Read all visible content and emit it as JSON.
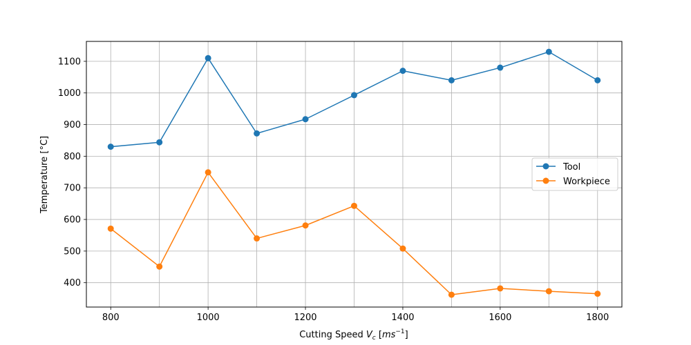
{
  "chart_data": {
    "type": "line",
    "x": [
      800,
      900,
      1000,
      1100,
      1200,
      1300,
      1400,
      1500,
      1600,
      1700,
      1800
    ],
    "series": [
      {
        "name": "Tool",
        "color": "#1f77b4",
        "values": [
          830,
          844,
          1110,
          872,
          917,
          993,
          1070,
          1040,
          1080,
          1130,
          1040
        ]
      },
      {
        "name": "Workpiece",
        "color": "#ff7f0e",
        "values": [
          571,
          451,
          749,
          540,
          581,
          643,
          508,
          362,
          382,
          373,
          365
        ]
      }
    ],
    "xlabel_prefix": "Cutting Speed ",
    "xlabel_var": "V",
    "xlabel_sub": "c",
    "xlabel_unit_prefix": " [",
    "xlabel_unit": "ms",
    "xlabel_unit_sup": "−1",
    "xlabel_unit_suffix": "]",
    "ylabel": "Temperature [°C]",
    "xlim": [
      750,
      1850
    ],
    "ylim": [
      323,
      1163
    ],
    "xticks": [
      800,
      1000,
      1200,
      1400,
      1600,
      1800
    ],
    "yticks": [
      400,
      500,
      600,
      700,
      800,
      900,
      1000,
      1100
    ],
    "xgrid": [
      800,
      900,
      1000,
      1100,
      1200,
      1300,
      1400,
      1500,
      1600,
      1700,
      1800
    ],
    "grid": true,
    "legend_position": "center-right"
  }
}
